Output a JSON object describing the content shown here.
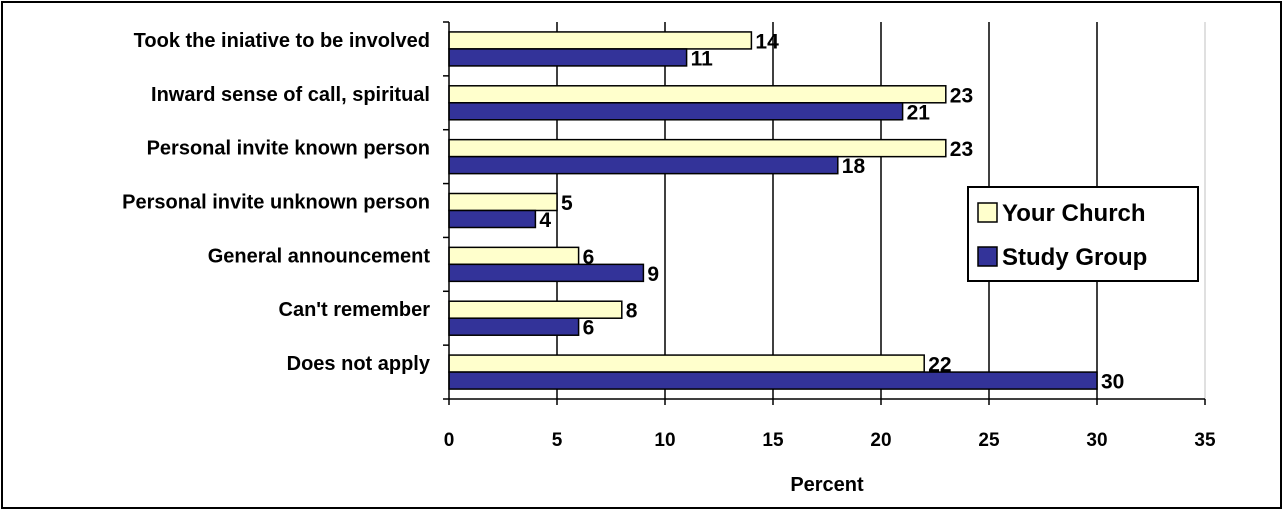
{
  "chart_data": {
    "type": "bar",
    "orientation": "horizontal",
    "categories": [
      "Took the iniative to be involved",
      "Inward sense of call, spiritual",
      "Personal invite known person",
      "Personal invite unknown person",
      "General announcement",
      "Can't remember",
      "Does not apply"
    ],
    "series": [
      {
        "name": "Your Church",
        "values": [
          14,
          23,
          23,
          5,
          6,
          8,
          22
        ],
        "color": "#ffffcc"
      },
      {
        "name": "Study Group",
        "values": [
          11,
          21,
          18,
          4,
          9,
          6,
          30
        ],
        "color": "#333399"
      }
    ],
    "xlabel": "Percent",
    "xlim": [
      0,
      35
    ],
    "xticks": [
      0,
      5,
      10,
      15,
      20,
      25,
      30,
      35
    ],
    "grid": "vertical",
    "legend_position": "right"
  }
}
